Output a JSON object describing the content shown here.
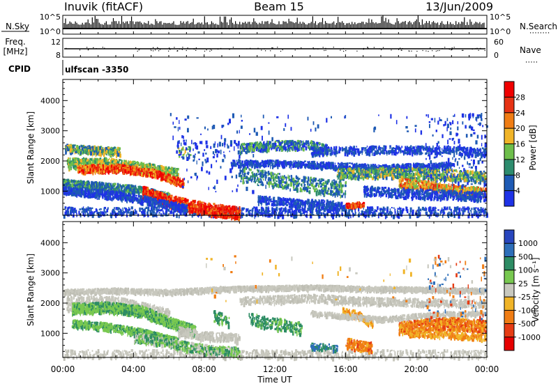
{
  "header": {
    "station": "Inuvik (fitACF)",
    "beam": "Beam 15",
    "date": "13/Jun/2009"
  },
  "panels": {
    "nsky": {
      "label": "N.Sky",
      "left_ticks": [
        "10^5",
        "10^0"
      ],
      "right_label": "N.Search",
      "right_ticks": [
        "10^5",
        "10^0"
      ]
    },
    "freq": {
      "label_line1": "Freq.",
      "label_line2": "[MHz]",
      "left_ticks": [
        "12",
        "8"
      ],
      "right_label": "Nave",
      "right_ticks": [
        "60",
        "0"
      ]
    },
    "cpid": {
      "label": "CPID",
      "value": "ulfscan -3350"
    }
  },
  "chart_data": [
    {
      "type": "heatmap",
      "title": "",
      "ylabel": "Slant Range [km]",
      "ylim": [
        200,
        4700
      ],
      "yticks": [
        1000,
        2000,
        3000,
        4000
      ],
      "xlabel": "",
      "xlim": [
        "00:00",
        "24:00"
      ],
      "colorbar": {
        "label": "Power [dB]",
        "ticks": [
          4,
          8,
          12,
          16,
          20,
          24,
          28
        ],
        "range": [
          0,
          32
        ],
        "colors": [
          "#1e32e6",
          "#1e5ab4",
          "#2d8c6e",
          "#6ebe4b",
          "#f0b428",
          "#f07d14",
          "#e63214",
          "#f00000"
        ]
      }
    },
    {
      "type": "heatmap",
      "title": "",
      "ylabel": "Slant Range [km]",
      "ylim": [
        200,
        4700
      ],
      "yticks": [
        1000,
        2000,
        3000,
        4000
      ],
      "xlabel": "Time UT",
      "xlim": [
        "00:00",
        "24:00"
      ],
      "xticks": [
        "00:00",
        "04:00",
        "08:00",
        "12:00",
        "16:00",
        "20:00",
        "00:00"
      ],
      "colorbar": {
        "label": "Velocity [m s⁻¹]",
        "ticks": [
          "1000",
          "500",
          "100",
          "25",
          "-25",
          "-100",
          "-500",
          "-1000"
        ],
        "colors": [
          "#2846be",
          "#2d6eb9",
          "#2d8c64",
          "#78c850",
          "#c8c8be",
          "#f0b428",
          "#f07d14",
          "#e63c14",
          "#e60000"
        ]
      }
    }
  ]
}
